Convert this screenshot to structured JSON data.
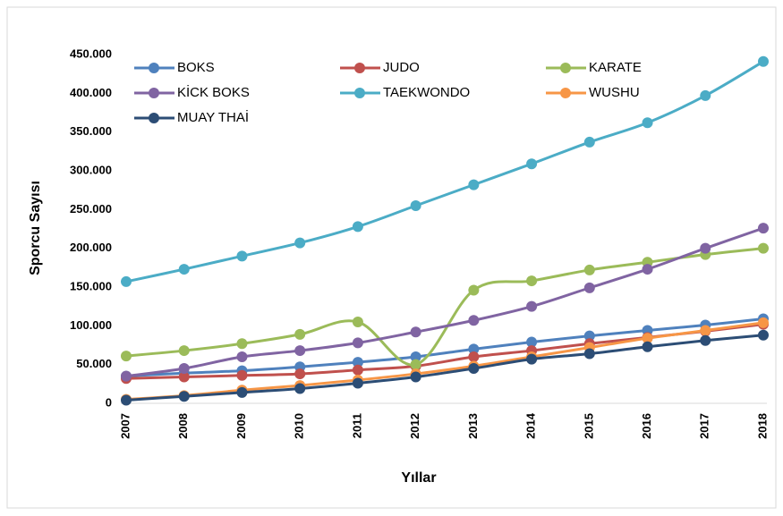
{
  "chart_data": {
    "type": "line",
    "x_label": "Yıllar",
    "y_label": "Sporcu Sayısı",
    "categories": [
      "2007",
      "2008",
      "2009",
      "2010",
      "2011",
      "2012",
      "2013",
      "2014",
      "2015",
      "2016",
      "2017",
      "2018"
    ],
    "ylim": [
      0,
      450000
    ],
    "yticks": [
      0,
      {
        "value": 50000,
        "label": "50.000"
      },
      {
        "value": 100000,
        "label": "100.000"
      },
      {
        "value": 150000,
        "label": "150.000"
      },
      {
        "value": 200000,
        "label": "200.000"
      },
      {
        "value": 250000,
        "label": "250.000"
      },
      {
        "value": 300000,
        "label": "300.000"
      },
      {
        "value": 350000,
        "label": "350.000"
      },
      {
        "value": 400000,
        "label": "400.000"
      },
      {
        "value": 450000,
        "label": "450.000"
      }
    ],
    "grid": false,
    "smooth": true,
    "series": [
      {
        "name": "BOKS",
        "color": "#4f81bd",
        "values": [
          35000,
          39000,
          42000,
          47000,
          53000,
          60000,
          70000,
          79000,
          87000,
          94000,
          101000,
          109000
        ]
      },
      {
        "name": "JUDO",
        "color": "#c0504d",
        "values": [
          32000,
          34000,
          36000,
          38000,
          43000,
          48000,
          60000,
          68000,
          77000,
          85000,
          93000,
          102000
        ]
      },
      {
        "name": "KARATE",
        "color": "#9bbb59",
        "values": [
          61000,
          68000,
          77000,
          89000,
          105000,
          50000,
          146000,
          158000,
          172000,
          182000,
          192000,
          200000
        ]
      },
      {
        "name": "KİCK BOKS",
        "color": "#8064a2",
        "values": [
          35000,
          45000,
          60000,
          68000,
          78000,
          92000,
          107000,
          125000,
          149000,
          173000,
          200000,
          226000
        ]
      },
      {
        "name": "TAEKWONDO",
        "color": "#4bacc6",
        "values": [
          157000,
          173000,
          190000,
          207000,
          228000,
          255000,
          282000,
          309000,
          337000,
          362000,
          397000,
          441000
        ]
      },
      {
        "name": "WUSHU",
        "color": "#f79646",
        "values": [
          5000,
          10000,
          17000,
          23000,
          30000,
          38000,
          48000,
          60000,
          72000,
          84000,
          94000,
          104000
        ]
      },
      {
        "name": "MUAY THAİ",
        "color": "#2c4d75",
        "values": [
          4000,
          9000,
          14000,
          19000,
          26000,
          34000,
          45000,
          57000,
          64000,
          73000,
          81000,
          88000
        ]
      }
    ]
  }
}
